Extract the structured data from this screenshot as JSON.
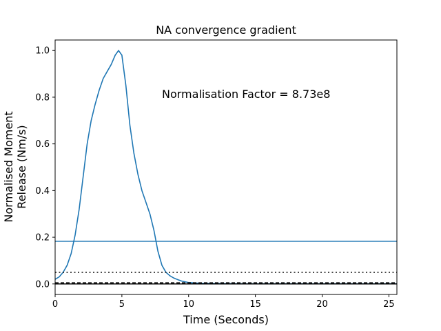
{
  "chart_data": {
    "type": "line",
    "title": "NA convergence gradient",
    "xlabel": "Time (Seconds)",
    "ylabel": [
      "Normalised Moment",
      "Release (Nm/s)"
    ],
    "xlim": [
      0,
      25.6
    ],
    "ylim": [
      -0.045,
      1.045
    ],
    "xticks": [
      0,
      5,
      10,
      15,
      20,
      25
    ],
    "xtick_labels": [
      "0",
      "5",
      "10",
      "15",
      "20",
      "25"
    ],
    "yticks": [
      0.0,
      0.2,
      0.4,
      0.6,
      0.8,
      1.0
    ],
    "ytick_labels": [
      "0.0",
      "0.2",
      "0.4",
      "0.6",
      "0.8",
      "1.0"
    ],
    "grid": false,
    "annotation": "Normalisation Factor = 8.73e8",
    "colors": {
      "series": "#1f77b4",
      "reference": "#000000"
    },
    "series": [
      {
        "style": "solid",
        "x": [
          0,
          0.3,
          0.6,
          0.9,
          1.2,
          1.5,
          1.8,
          2.1,
          2.4,
          2.7,
          3.0,
          3.3,
          3.6,
          3.9,
          4.2,
          4.5,
          4.75,
          5.0,
          5.3,
          5.6,
          5.9,
          6.2,
          6.5,
          6.8,
          7.1,
          7.4,
          7.7,
          8.0,
          8.3,
          8.6,
          8.9,
          9.2,
          9.5,
          10.0,
          10.5,
          11.0,
          12.0,
          14.0,
          17.0,
          20.0,
          23.0,
          25.6
        ],
        "y": [
          0.02,
          0.03,
          0.05,
          0.08,
          0.13,
          0.21,
          0.32,
          0.46,
          0.6,
          0.7,
          0.77,
          0.83,
          0.88,
          0.91,
          0.94,
          0.98,
          1.0,
          0.98,
          0.85,
          0.68,
          0.56,
          0.47,
          0.4,
          0.35,
          0.3,
          0.23,
          0.14,
          0.08,
          0.05,
          0.035,
          0.025,
          0.018,
          0.012,
          0.006,
          0.004,
          0.003,
          0.002,
          0.001,
          0.001,
          0.001,
          0.001,
          0.001
        ]
      },
      {
        "style": "solid",
        "constant": 0.183
      },
      {
        "style": "dotted",
        "constant": 0.05
      },
      {
        "style": "dashed",
        "constant": 0.005
      },
      {
        "style": "solid",
        "constant": 0.0
      }
    ]
  }
}
